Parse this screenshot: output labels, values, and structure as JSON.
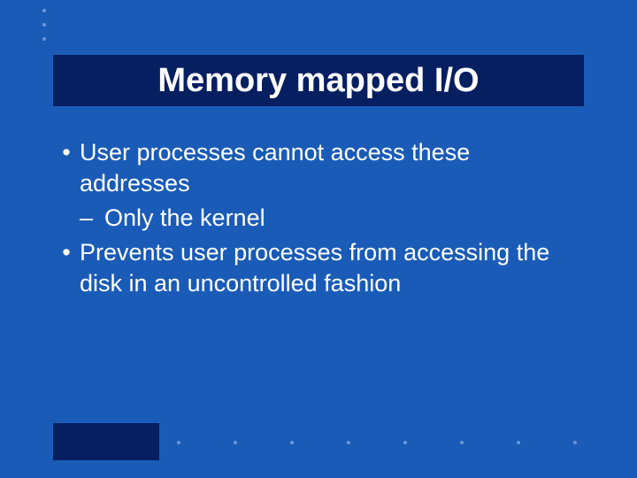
{
  "slide": {
    "background_color": "#1a5bb7",
    "title_bar_color": "#061f61",
    "footer_block_color": "#061f61",
    "dot_color": "#6d98d6",
    "text_color": "#ffffff",
    "title": "Memory mapped I/O",
    "title_fontsize": 38,
    "body_fontsize": 27,
    "bullets": [
      {
        "text": "User processes cannot access these addresses",
        "sub": [
          {
            "text": "Only the kernel"
          }
        ]
      },
      {
        "text": "Prevents user processes from accessing the disk in an uncontrolled fashion",
        "sub": []
      }
    ],
    "top_dot_count": 3,
    "bottom_dot_count": 8
  }
}
